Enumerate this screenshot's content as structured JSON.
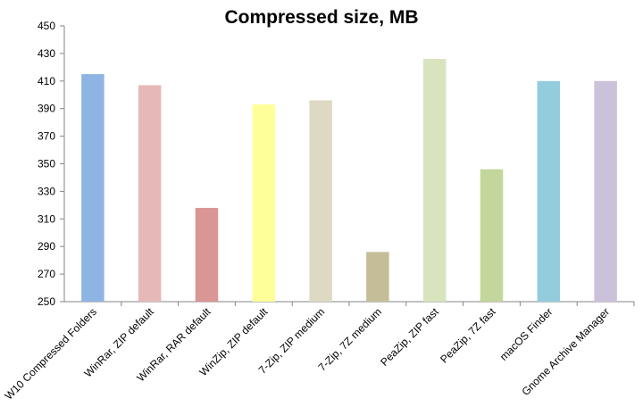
{
  "chart_data": {
    "type": "bar",
    "title": "Compressed size, MB",
    "xlabel": "",
    "ylabel": "",
    "ylim": [
      250,
      450
    ],
    "yticks": [
      250,
      270,
      290,
      310,
      330,
      350,
      370,
      390,
      410,
      430,
      450
    ],
    "grid": false,
    "legend": "none",
    "categories": [
      "W10 Compressed Folders",
      "WinRar, ZIP default",
      "WinRar, RAR default",
      "WinZip, ZIP default",
      "7-Zip, ZIP medium",
      "7-Zip, 7Z medium",
      "PeaZip, ZIP fast",
      "PeaZip, 7Z fast",
      "macOS Finder",
      "Gnome Archive Manager"
    ],
    "values": [
      415,
      407,
      318,
      393,
      396,
      286,
      426,
      346,
      410,
      410
    ],
    "colors": [
      "#8eb4e3",
      "#e6b9b8",
      "#d99694",
      "#ffff99",
      "#ddd9c3",
      "#c4bd97",
      "#d7e4bd",
      "#c3d69b",
      "#93cddd",
      "#ccc1da"
    ]
  }
}
